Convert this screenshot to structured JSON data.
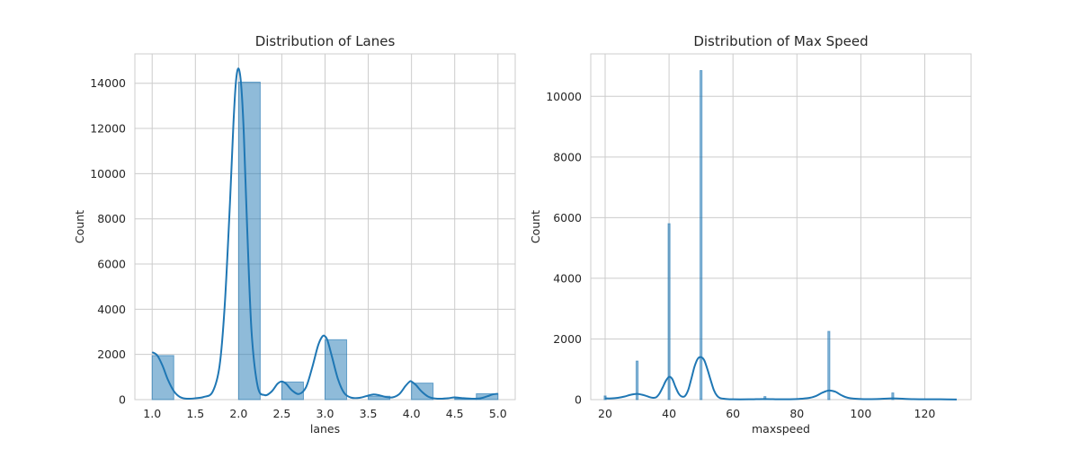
{
  "colors": {
    "bar": "#1f77b4",
    "kde": "#1f77b4",
    "grid": "#cccccc"
  },
  "chart_data": [
    {
      "type": "bar",
      "title": "Distribution of Lanes",
      "xlabel": "lanes",
      "ylabel": "Count",
      "xlim": [
        0.8,
        5.2
      ],
      "ylim": [
        0,
        15300
      ],
      "grid": true,
      "xticks": [
        "1.0",
        "1.5",
        "2.0",
        "2.5",
        "3.0",
        "3.5",
        "4.0",
        "4.5",
        "5.0"
      ],
      "xtick_values": [
        1.0,
        1.5,
        2.0,
        2.5,
        3.0,
        3.5,
        4.0,
        4.5,
        5.0
      ],
      "yticks": [
        "0",
        "2000",
        "4000",
        "6000",
        "8000",
        "10000",
        "12000",
        "14000"
      ],
      "ytick_values": [
        0,
        2000,
        4000,
        6000,
        8000,
        10000,
        12000,
        14000
      ],
      "bin_edges": [
        1.0,
        1.25,
        1.5,
        1.75,
        2.0,
        2.25,
        2.5,
        2.75,
        3.0,
        3.25,
        3.5,
        3.75,
        4.0,
        4.25,
        4.5,
        4.75,
        5.0
      ],
      "values": [
        1950,
        0,
        0,
        0,
        14050,
        0,
        780,
        0,
        2650,
        0,
        150,
        0,
        730,
        0,
        50,
        260
      ],
      "kde": {
        "x": [
          1.0,
          1.06,
          1.12,
          1.18,
          1.25,
          1.32,
          1.4,
          1.5,
          1.6,
          1.7,
          1.78,
          1.84,
          1.9,
          1.94,
          1.97,
          2.0,
          2.03,
          2.06,
          2.1,
          2.15,
          2.22,
          2.3,
          2.38,
          2.45,
          2.5,
          2.55,
          2.62,
          2.7,
          2.78,
          2.85,
          2.92,
          2.97,
          3.0,
          3.03,
          3.08,
          3.15,
          3.22,
          3.3,
          3.4,
          3.5,
          3.56,
          3.62,
          3.7,
          3.78,
          3.86,
          3.93,
          3.98,
          4.0,
          4.05,
          4.12,
          4.2,
          4.3,
          4.42,
          4.5,
          4.58,
          4.7,
          4.8,
          4.88,
          4.94,
          5.0
        ],
        "y": [
          2100,
          1950,
          1500,
          900,
          380,
          120,
          40,
          60,
          120,
          350,
          1500,
          4200,
          8700,
          12200,
          14100,
          14650,
          13900,
          11800,
          7500,
          3000,
          600,
          200,
          350,
          700,
          800,
          700,
          400,
          250,
          550,
          1400,
          2400,
          2800,
          2800,
          2600,
          1900,
          900,
          300,
          90,
          80,
          180,
          230,
          200,
          120,
          100,
          250,
          600,
          800,
          800,
          650,
          350,
          120,
          40,
          60,
          100,
          70,
          40,
          60,
          150,
          230,
          260
        ]
      }
    },
    {
      "type": "bar",
      "title": "Distribution of Max Speed",
      "xlabel": "maxspeed",
      "ylabel": "Count",
      "xlim": [
        15.5,
        134.5
      ],
      "ylim": [
        0,
        11400
      ],
      "grid": true,
      "xticks": [
        "20",
        "40",
        "60",
        "80",
        "100",
        "120"
      ],
      "xtick_values": [
        20,
        40,
        60,
        80,
        100,
        120
      ],
      "yticks": [
        "0",
        "2000",
        "4000",
        "6000",
        "8000",
        "10000"
      ],
      "ytick_values": [
        0,
        2000,
        4000,
        6000,
        8000,
        10000
      ],
      "bin_width": 0.6,
      "bars": [
        {
          "x": 20,
          "value": 120
        },
        {
          "x": 30,
          "value": 1270
        },
        {
          "x": 40,
          "value": 5800
        },
        {
          "x": 50,
          "value": 10850
        },
        {
          "x": 70,
          "value": 100
        },
        {
          "x": 90,
          "value": 2250
        },
        {
          "x": 110,
          "value": 220
        }
      ],
      "kde": {
        "x": [
          20,
          22,
          24,
          26,
          28,
          30,
          32,
          34,
          35,
          36,
          37,
          38,
          39,
          40,
          41,
          42,
          43,
          44,
          45,
          46,
          47,
          48,
          49,
          50,
          51,
          52,
          53,
          54,
          55,
          56,
          58,
          60,
          65,
          70,
          75,
          80,
          84,
          86,
          88,
          90,
          92,
          94,
          96,
          100,
          105,
          110,
          115,
          120,
          125,
          130
        ],
        "y": [
          40,
          40,
          60,
          100,
          160,
          190,
          150,
          80,
          60,
          80,
          200,
          400,
          620,
          750,
          680,
          420,
          200,
          100,
          120,
          320,
          700,
          1100,
          1350,
          1400,
          1300,
          1000,
          650,
          320,
          130,
          50,
          20,
          10,
          10,
          20,
          10,
          20,
          60,
          120,
          230,
          300,
          260,
          140,
          60,
          20,
          20,
          40,
          20,
          10,
          10,
          5
        ]
      }
    }
  ]
}
